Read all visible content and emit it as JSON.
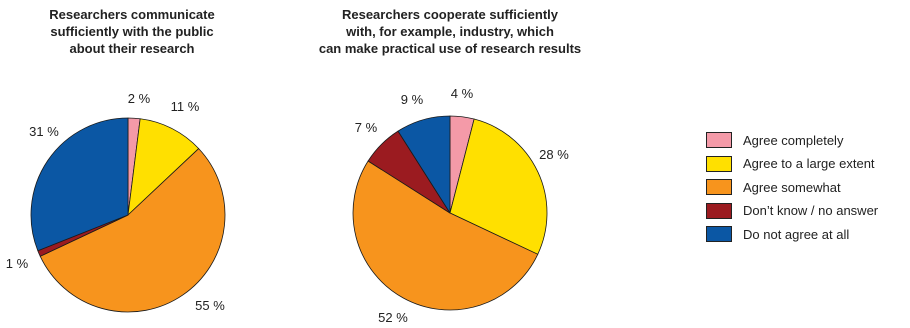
{
  "colors": {
    "agree_completely": "#F49AA8",
    "agree_large": "#FFE000",
    "agree_somewhat": "#F7941D",
    "dont_know": "#9B1B20",
    "not_agree": "#0B57A4"
  },
  "legend": [
    {
      "label": "Agree completely",
      "color": "#F49AA8"
    },
    {
      "label": "Agree to a large extent",
      "color": "#FFE000"
    },
    {
      "label": "Agree somewhat",
      "color": "#F7941D"
    },
    {
      "label": "Don’t know / no answer",
      "color": "#9B1B20"
    },
    {
      "label": "Do not agree at all",
      "color": "#0B57A4"
    }
  ],
  "chart_data": [
    {
      "type": "pie",
      "title": "Researchers communicate\nsufficiently with the public\nabout their research",
      "categories": [
        "Agree completely",
        "Agree to a large extent",
        "Agree somewhat",
        "Don’t know / no answer",
        "Do not agree at all"
      ],
      "values": [
        2,
        11,
        55,
        1,
        31
      ],
      "labels": [
        "2 %",
        "11 %",
        "55 %",
        "1 %",
        "31 %"
      ]
    },
    {
      "type": "pie",
      "title": "Researchers cooperate sufficiently\nwith, for example, industry, which\ncan make practical use of research results",
      "categories": [
        "Agree completely",
        "Agree to a large extent",
        "Agree somewhat",
        "Don’t know / no answer",
        "Do not agree at all"
      ],
      "values": [
        4,
        28,
        52,
        7,
        9
      ],
      "labels": [
        "4 %",
        "28 %",
        "52 %",
        "7 %",
        "9 %"
      ]
    }
  ]
}
